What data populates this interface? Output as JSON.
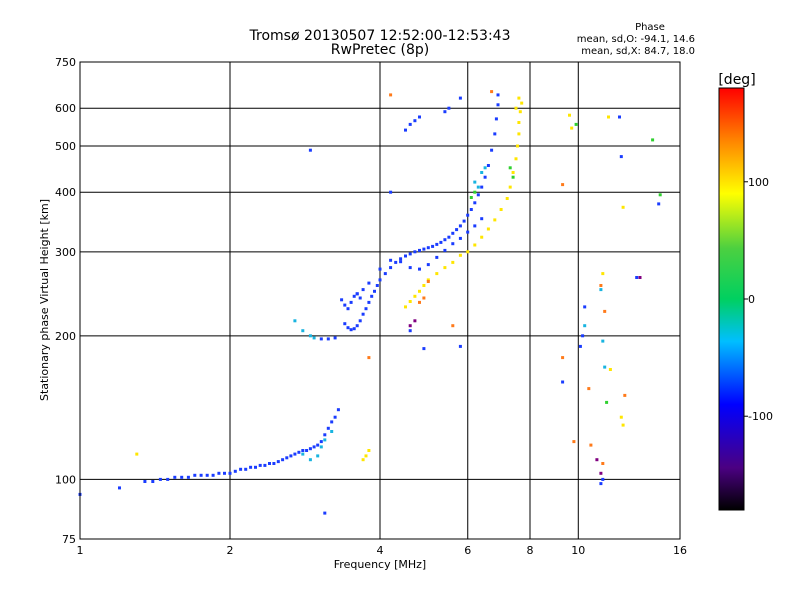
{
  "chart_data": {
    "type": "scatter",
    "title": "Tromsø 20130507 12:52:00-12:53:43",
    "subtitle": "RwPretec (8p)",
    "xlabel": "Frequency [MHz]",
    "ylabel": "Stationary phase Virtual Height [km]",
    "x_scale": "log",
    "y_scale": "log",
    "xlim": [
      1,
      16
    ],
    "ylim": [
      75,
      750
    ],
    "x_ticks": [
      "1",
      "2",
      "4",
      "6",
      "8",
      "10",
      "16"
    ],
    "y_ticks": [
      "75",
      "100",
      "200",
      "300",
      "400",
      "500",
      "600",
      "750"
    ],
    "grid": true,
    "legend": {
      "title": "Phase",
      "lines": [
        "mean, sd,O: -94.1, 14.6",
        "mean, sd,X:  84.7, 18.0"
      ]
    },
    "colorbar": {
      "label": "[deg]",
      "ticks": [
        "100",
        "0",
        "-100"
      ],
      "tick_values": [
        100,
        0,
        -100
      ],
      "range": [
        -180,
        180
      ]
    },
    "series": [
      {
        "color": "#1a3cff",
        "points": [
          [
            1.0,
            93
          ],
          [
            1.2,
            96
          ],
          [
            1.35,
            99
          ],
          [
            1.4,
            99
          ],
          [
            1.45,
            100
          ],
          [
            1.5,
            100
          ],
          [
            1.55,
            101
          ],
          [
            1.6,
            101
          ],
          [
            1.65,
            101
          ],
          [
            1.7,
            102
          ],
          [
            1.75,
            102
          ],
          [
            1.8,
            102
          ],
          [
            1.85,
            102
          ],
          [
            1.9,
            103
          ],
          [
            1.95,
            103
          ],
          [
            2.0,
            103
          ],
          [
            2.05,
            104
          ],
          [
            2.1,
            105
          ],
          [
            2.15,
            105
          ],
          [
            2.2,
            106
          ],
          [
            2.25,
            106
          ],
          [
            2.3,
            107
          ],
          [
            2.35,
            107
          ],
          [
            2.4,
            108
          ],
          [
            2.45,
            108
          ],
          [
            2.5,
            109
          ],
          [
            2.55,
            110
          ],
          [
            2.6,
            111
          ],
          [
            2.65,
            112
          ],
          [
            2.7,
            113
          ],
          [
            2.75,
            114
          ],
          [
            2.8,
            115
          ],
          [
            2.85,
            115
          ],
          [
            2.9,
            116
          ],
          [
            2.95,
            117
          ],
          [
            3.0,
            118
          ],
          [
            3.05,
            120
          ],
          [
            3.1,
            124
          ],
          [
            3.15,
            128
          ],
          [
            3.2,
            132
          ],
          [
            3.25,
            135
          ],
          [
            3.3,
            140
          ],
          [
            3.1,
            85
          ],
          [
            3.05,
            197
          ],
          [
            3.15,
            197
          ],
          [
            3.25,
            198
          ],
          [
            3.35,
            238
          ],
          [
            3.4,
            232
          ],
          [
            3.45,
            228
          ],
          [
            3.5,
            235
          ],
          [
            3.55,
            242
          ],
          [
            3.6,
            245
          ],
          [
            3.65,
            240
          ],
          [
            3.7,
            250
          ],
          [
            3.4,
            212
          ],
          [
            3.45,
            208
          ],
          [
            3.5,
            206
          ],
          [
            3.55,
            207
          ],
          [
            3.6,
            210
          ],
          [
            3.65,
            215
          ],
          [
            3.7,
            222
          ],
          [
            3.75,
            228
          ],
          [
            3.8,
            235
          ],
          [
            3.85,
            242
          ],
          [
            3.9,
            248
          ],
          [
            3.95,
            255
          ],
          [
            4.0,
            262
          ],
          [
            4.1,
            270
          ],
          [
            4.2,
            278
          ],
          [
            4.3,
            285
          ],
          [
            4.4,
            290
          ],
          [
            4.5,
            294
          ],
          [
            4.6,
            297
          ],
          [
            4.7,
            300
          ],
          [
            4.8,
            302
          ],
          [
            4.9,
            304
          ],
          [
            5.0,
            306
          ],
          [
            5.1,
            308
          ],
          [
            5.2,
            311
          ],
          [
            5.3,
            314
          ],
          [
            5.4,
            318
          ],
          [
            5.5,
            322
          ],
          [
            5.6,
            328
          ],
          [
            5.7,
            334
          ],
          [
            5.8,
            340
          ],
          [
            5.9,
            348
          ],
          [
            6.0,
            358
          ],
          [
            6.1,
            368
          ],
          [
            6.2,
            380
          ],
          [
            6.3,
            395
          ],
          [
            6.4,
            410
          ],
          [
            6.5,
            430
          ],
          [
            6.6,
            455
          ],
          [
            6.7,
            490
          ],
          [
            6.8,
            530
          ],
          [
            6.85,
            570
          ],
          [
            6.9,
            610
          ],
          [
            6.9,
            640
          ],
          [
            3.6,
            245
          ],
          [
            3.8,
            258
          ],
          [
            4.0,
            276
          ],
          [
            4.2,
            288
          ],
          [
            4.4,
            286
          ],
          [
            4.6,
            278
          ],
          [
            4.8,
            276
          ],
          [
            5.0,
            282
          ],
          [
            5.2,
            292
          ],
          [
            5.4,
            302
          ],
          [
            5.6,
            312
          ],
          [
            5.8,
            320
          ],
          [
            6.0,
            330
          ],
          [
            6.2,
            340
          ],
          [
            6.4,
            352
          ],
          [
            4.5,
            540
          ],
          [
            4.6,
            555
          ],
          [
            4.7,
            565
          ],
          [
            4.8,
            575
          ],
          [
            5.4,
            590
          ],
          [
            5.5,
            600
          ],
          [
            5.8,
            630
          ],
          [
            2.9,
            490
          ],
          [
            4.6,
            205
          ],
          [
            4.9,
            188
          ],
          [
            5.8,
            190
          ],
          [
            9.3,
            160
          ],
          [
            10.1,
            190
          ],
          [
            10.2,
            200
          ],
          [
            11.1,
            98
          ],
          [
            11.2,
            100
          ],
          [
            12.1,
            575
          ],
          [
            12.2,
            475
          ],
          [
            13.1,
            265
          ],
          [
            14.5,
            378
          ],
          [
            10.3,
            230
          ],
          [
            4.2,
            400
          ]
        ]
      },
      {
        "color": "#18b4e0",
        "points": [
          [
            2.7,
            215
          ],
          [
            2.8,
            205
          ],
          [
            2.9,
            200
          ],
          [
            2.95,
            198
          ],
          [
            2.8,
            113
          ],
          [
            2.9,
            110
          ],
          [
            3.0,
            112
          ],
          [
            3.05,
            117
          ],
          [
            3.1,
            121
          ],
          [
            3.2,
            126
          ],
          [
            6.2,
            420
          ],
          [
            6.3,
            410
          ],
          [
            6.4,
            440
          ],
          [
            6.5,
            450
          ],
          [
            11.1,
            250
          ],
          [
            11.2,
            195
          ],
          [
            11.3,
            172
          ],
          [
            10.3,
            210
          ]
        ]
      },
      {
        "color": "#ffe600",
        "points": [
          [
            4.5,
            230
          ],
          [
            4.6,
            236
          ],
          [
            4.7,
            242
          ],
          [
            4.8,
            248
          ],
          [
            4.9,
            255
          ],
          [
            5.0,
            262
          ],
          [
            5.2,
            270
          ],
          [
            5.4,
            278
          ],
          [
            5.6,
            285
          ],
          [
            5.8,
            295
          ],
          [
            6.0,
            300
          ],
          [
            6.2,
            310
          ],
          [
            6.4,
            322
          ],
          [
            6.6,
            335
          ],
          [
            6.8,
            350
          ],
          [
            7.0,
            368
          ],
          [
            7.2,
            388
          ],
          [
            7.3,
            410
          ],
          [
            7.4,
            440
          ],
          [
            7.5,
            470
          ],
          [
            7.55,
            500
          ],
          [
            7.6,
            530
          ],
          [
            7.6,
            560
          ],
          [
            7.65,
            590
          ],
          [
            7.7,
            615
          ],
          [
            7.6,
            630
          ],
          [
            7.5,
            600
          ],
          [
            1.3,
            113
          ],
          [
            3.7,
            110
          ],
          [
            3.75,
            112
          ],
          [
            3.8,
            115
          ],
          [
            9.6,
            580
          ],
          [
            9.7,
            545
          ],
          [
            11.5,
            575
          ],
          [
            12.3,
            372
          ],
          [
            11.2,
            270
          ],
          [
            11.6,
            170
          ],
          [
            12.2,
            135
          ],
          [
            12.3,
            130
          ]
        ]
      },
      {
        "color": "#ff7a1a",
        "points": [
          [
            4.2,
            640
          ],
          [
            4.8,
            235
          ],
          [
            4.9,
            240
          ],
          [
            5.0,
            260
          ],
          [
            5.6,
            210
          ],
          [
            6.7,
            650
          ],
          [
            9.3,
            415
          ],
          [
            9.3,
            180
          ],
          [
            9.8,
            120
          ],
          [
            10.6,
            118
          ],
          [
            11.2,
            108
          ],
          [
            10.5,
            155
          ],
          [
            12.4,
            150
          ],
          [
            3.8,
            180
          ],
          [
            11.1,
            255
          ],
          [
            11.3,
            225
          ]
        ]
      },
      {
        "color": "#2fd02f",
        "points": [
          [
            6.1,
            390
          ],
          [
            6.2,
            400
          ],
          [
            7.3,
            450
          ],
          [
            7.4,
            430
          ],
          [
            14.1,
            515
          ],
          [
            14.6,
            395
          ],
          [
            9.9,
            555
          ],
          [
            11.4,
            145
          ]
        ]
      },
      {
        "color": "#800080",
        "points": [
          [
            4.6,
            210
          ],
          [
            4.7,
            215
          ],
          [
            10.9,
            110
          ],
          [
            11.1,
            103
          ],
          [
            13.3,
            265
          ]
        ]
      }
    ]
  }
}
